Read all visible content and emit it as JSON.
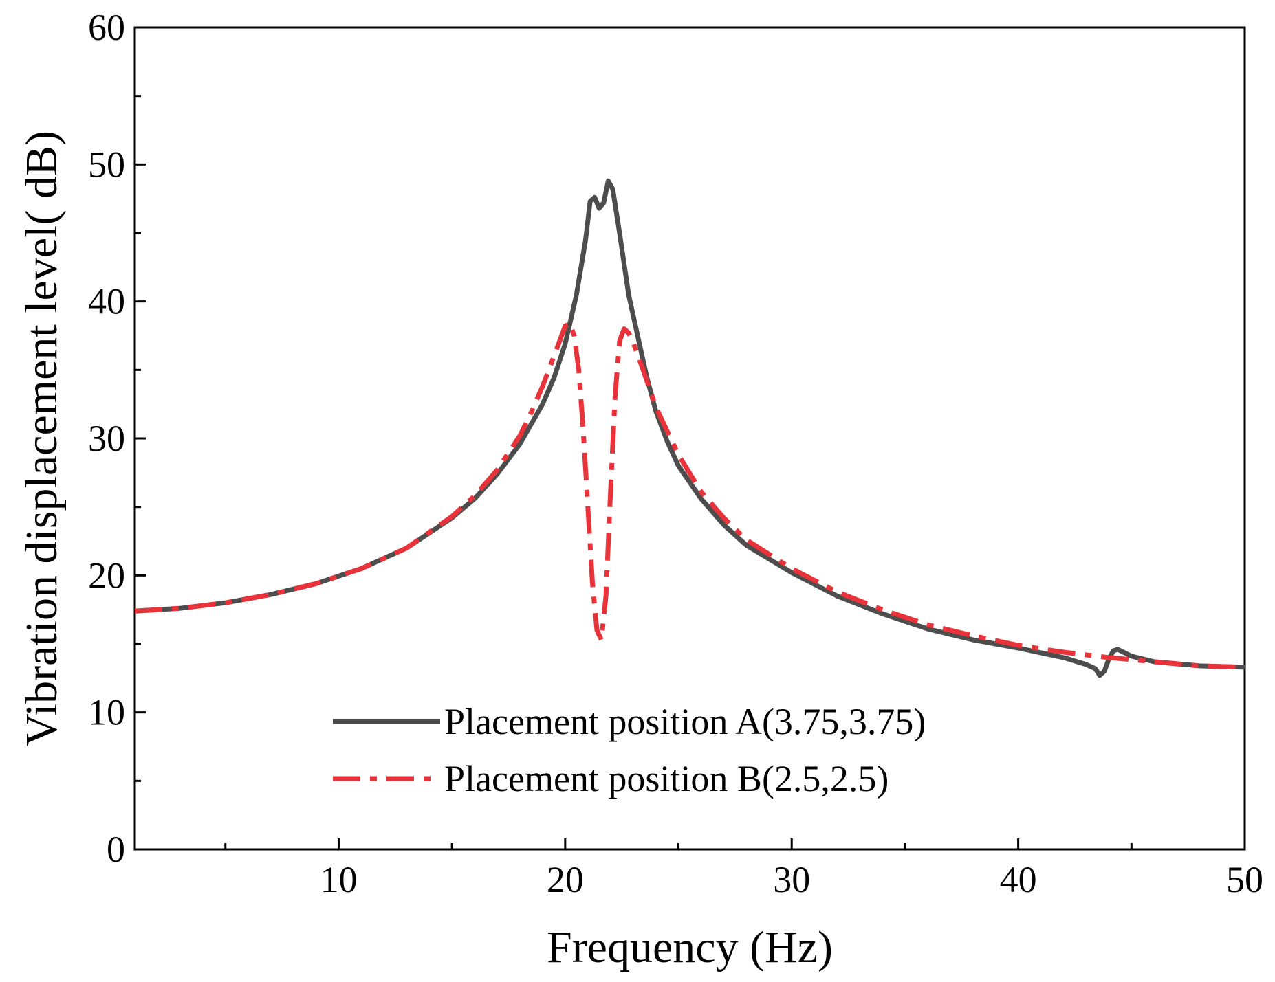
{
  "chart_data": {
    "type": "line",
    "title": "",
    "xlabel": "Frequency (Hz)",
    "ylabel": "Vibration displacement level( dB)",
    "xlim": [
      1,
      50
    ],
    "ylim": [
      0,
      60
    ],
    "x_ticks": [
      10,
      20,
      30,
      40,
      50
    ],
    "x_tick_labels": [
      "10",
      "20",
      "30",
      "40",
      "50"
    ],
    "x_minor_ticks": [
      5,
      15,
      25,
      35,
      45
    ],
    "y_ticks": [
      0,
      10,
      20,
      30,
      40,
      50,
      60
    ],
    "y_tick_labels": [
      "0",
      "10",
      "20",
      "30",
      "40",
      "50",
      "60"
    ],
    "y_minor_ticks": [
      5,
      15,
      25,
      35,
      45,
      55
    ],
    "grid": false,
    "legend_position": "bottom-center",
    "series": [
      {
        "name": "Placement position A(3.75,3.75)",
        "color": "#4d4d4d",
        "style": "solid",
        "x": [
          1,
          3,
          5,
          7,
          9,
          11,
          13,
          15,
          16,
          17,
          18,
          19,
          19.5,
          20,
          20.5,
          20.9,
          21.1,
          21.3,
          21.5,
          21.7,
          21.9,
          22.1,
          22.4,
          22.8,
          23.2,
          23.6,
          24,
          24.5,
          25,
          26,
          27,
          28,
          30,
          32,
          34,
          36,
          38,
          40,
          42,
          43,
          43.4,
          43.6,
          43.8,
          44,
          44.2,
          44.4,
          45,
          46,
          48,
          50
        ],
        "y": [
          17.4,
          17.6,
          18,
          18.6,
          19.4,
          20.5,
          22,
          24.2,
          25.6,
          27.4,
          29.6,
          32.5,
          34.4,
          36.9,
          40.5,
          44.5,
          47.3,
          47.6,
          46.8,
          47.2,
          48.8,
          48.2,
          45,
          40.5,
          37.5,
          34.5,
          32,
          29.8,
          28,
          25.6,
          23.7,
          22.2,
          20.2,
          18.5,
          17.2,
          16.1,
          15.3,
          14.7,
          14,
          13.5,
          13.2,
          12.7,
          13,
          13.9,
          14.5,
          14.6,
          14.1,
          13.7,
          13.4,
          13.3
        ]
      },
      {
        "name": "Placement position B(2.5,2.5)",
        "color": "#e8333b",
        "style": "dashdot",
        "x": [
          1,
          3,
          5,
          7,
          9,
          11,
          13,
          15,
          16,
          17,
          18,
          18.5,
          19,
          19.5,
          19.8,
          20,
          20.2,
          20.4,
          20.6,
          20.8,
          21,
          21.2,
          21.4,
          21.6,
          21.8,
          22,
          22.2,
          22.4,
          22.6,
          22.8,
          23,
          23.4,
          24,
          25,
          26,
          27,
          28,
          30,
          32,
          34,
          36,
          38,
          40,
          42,
          44,
          46,
          48,
          50
        ],
        "y": [
          17.4,
          17.6,
          18,
          18.6,
          19.4,
          20.5,
          22,
          24.3,
          25.8,
          27.7,
          30.2,
          31.9,
          33.8,
          36,
          37.3,
          38.2,
          38.4,
          37.5,
          35,
          30.5,
          25,
          19.5,
          16,
          15.3,
          18.5,
          26,
          33,
          37.1,
          38,
          37.7,
          37,
          35.2,
          32.3,
          28.8,
          26.1,
          24.2,
          22.6,
          20.5,
          18.8,
          17.5,
          16.4,
          15.6,
          14.9,
          14.4,
          14,
          13.7,
          13.4,
          13.3
        ]
      }
    ]
  }
}
